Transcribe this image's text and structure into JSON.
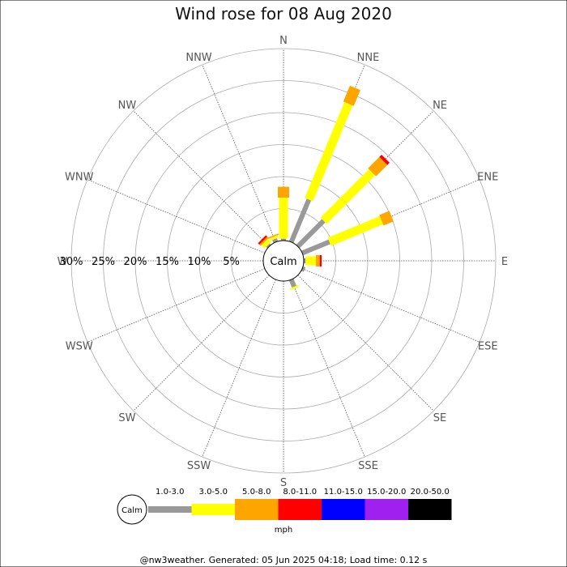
{
  "chart_data": {
    "type": "wind-rose",
    "title": "Wind rose for 08 Aug 2020",
    "unit": "mph",
    "calm_label": "Calm",
    "directions": [
      "N",
      "NNE",
      "NE",
      "ENE",
      "E",
      "ESE",
      "SE",
      "SSE",
      "S",
      "SSW",
      "SW",
      "WSW",
      "W",
      "WNW",
      "NW",
      "NNW"
    ],
    "ring_labels": [
      "5%",
      "10%",
      "15%",
      "20%",
      "25%",
      "30%"
    ],
    "ring_values": [
      5,
      10,
      15,
      20,
      25,
      30
    ],
    "r_max": 30,
    "speed_bins": [
      {
        "label": "1.0-3.0",
        "color": "#999999"
      },
      {
        "label": "3.0-5.0",
        "color": "#ffff00"
      },
      {
        "label": "5.0-8.0",
        "color": "#ffa500"
      },
      {
        "label": "8.0-11.0",
        "color": "#ff0000"
      },
      {
        "label": "11.0-15.0",
        "color": "#0000ff"
      },
      {
        "label": "15.0-20.0",
        "color": "#a020f0"
      },
      {
        "label": "20.0-50.0",
        "color": "#000000"
      }
    ],
    "series": [
      {
        "direction": "N",
        "segments": [
          0.3,
          6.4,
          1.7,
          0,
          0,
          0,
          0
        ]
      },
      {
        "direction": "NNE",
        "segments": [
          7.2,
          16.2,
          2.7,
          0,
          0,
          0,
          0
        ]
      },
      {
        "direction": "NE",
        "segments": [
          5.7,
          10.7,
          2.5,
          0.5,
          0,
          0,
          0
        ]
      },
      {
        "direction": "ENE",
        "segments": [
          4.6,
          8.8,
          1.7,
          0,
          0,
          0,
          0
        ]
      },
      {
        "direction": "E",
        "segments": [
          0.3,
          1.6,
          0.6,
          0.3,
          0,
          0,
          0
        ]
      },
      {
        "direction": "ESE",
        "segments": [
          0.4,
          0,
          0,
          0,
          0,
          0,
          0
        ]
      },
      {
        "direction": "SSE",
        "segments": [
          1.2,
          0.3,
          0,
          0,
          0,
          0,
          0
        ]
      },
      {
        "direction": "NW",
        "segments": [
          0.3,
          0.7,
          0.3,
          0.3,
          0,
          0,
          0
        ]
      },
      {
        "direction": "NNW",
        "segments": [
          0.5,
          0.4,
          0.2,
          0,
          0,
          0,
          0
        ]
      }
    ]
  },
  "footer": "@nw3weather. Generated: 05 Jun 2025 04:18; Load time: 0.12 s"
}
